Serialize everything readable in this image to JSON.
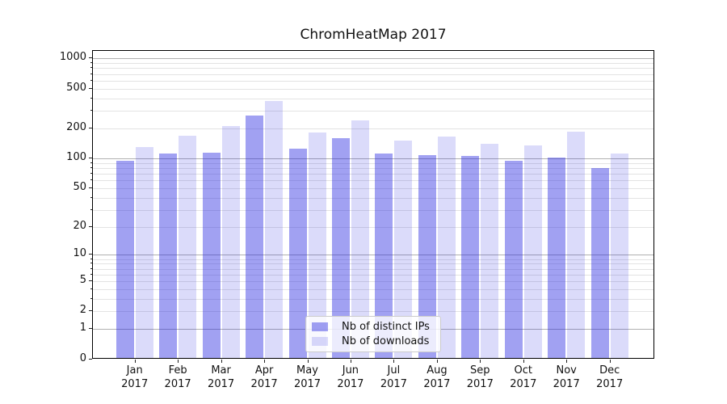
{
  "title": "ChromHeatMap 2017",
  "chart_data": {
    "type": "bar",
    "title": "ChromHeatMap 2017",
    "categories": [
      "Jan 2017",
      "Feb 2017",
      "Mar 2017",
      "Apr 2017",
      "May 2017",
      "Jun 2017",
      "Jul 2017",
      "Aug 2017",
      "Sep 2017",
      "Oct 2017",
      "Nov 2017",
      "Dec 2017"
    ],
    "series": [
      {
        "name": "Nb of distinct IPs",
        "color": "rgba(30,30,224,0.42)",
        "values": [
          95,
          112,
          115,
          270,
          126,
          161,
          111,
          108,
          106,
          95,
          101,
          80
        ]
      },
      {
        "name": "Nb of downloads",
        "color": "rgba(30,30,224,0.16)",
        "values": [
          130,
          170,
          210,
          375,
          182,
          243,
          151,
          167,
          140,
          135,
          185,
          111
        ]
      }
    ],
    "xlabel": "",
    "ylabel": "",
    "yscale": "log1p",
    "ylim": [
      0,
      1225
    ],
    "yticks": {
      "values": [
        0,
        1,
        2,
        5,
        10,
        20,
        50,
        100,
        200,
        500,
        1000
      ],
      "labels": [
        "0",
        "1",
        "2",
        "5",
        "10",
        "20",
        "50",
        "100",
        "200",
        "500",
        "1000"
      ]
    },
    "grid": {
      "axis": "y",
      "major_color": "#b0b0b0",
      "minor_color": "#e3e3e3"
    },
    "legend": {
      "position": "inside-lower-center",
      "items": [
        "Nb of distinct IPs",
        "Nb of downloads"
      ]
    }
  },
  "colors": {
    "bar_distinct_ips": "rgba(30,30,224,0.42)",
    "bar_downloads": "rgba(30,30,224,0.16)",
    "spine": "#000000",
    "grid_major": "#b0b0b0",
    "grid_minor": "#e3e3e3",
    "legend_border": "#cccccc",
    "legend_background": "rgba(255,255,255,0.8)",
    "text": "#111111"
  }
}
